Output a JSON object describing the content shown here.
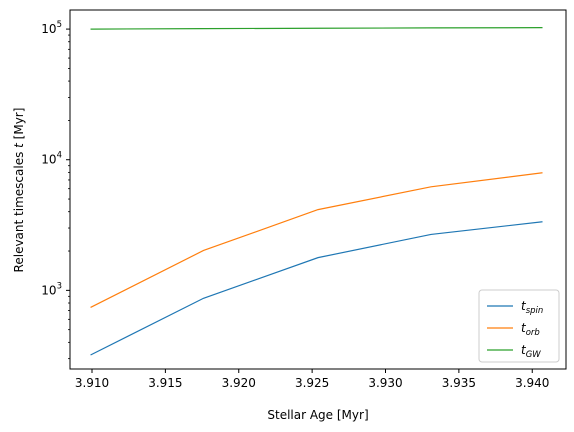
{
  "chart_data": {
    "type": "line",
    "xlabel": "Stellar Age [Myr]",
    "ylabel_prefix": "Relevant timescales ",
    "ylabel_var": "t",
    "ylabel_suffix": " [Myr]",
    "x_scale": "linear",
    "y_scale": "log",
    "xlim": [
      3.9085,
      3.9423
    ],
    "ylim": [
      250,
      140000
    ],
    "x_ticks": [
      3.91,
      3.915,
      3.92,
      3.925,
      3.93,
      3.935,
      3.94
    ],
    "x_tick_labels": [
      "3.910",
      "3.915",
      "3.920",
      "3.925",
      "3.930",
      "3.935",
      "3.940"
    ],
    "y_major_ticks": [
      1000,
      10000,
      100000
    ],
    "y_tick_labels": [
      {
        "base": "10",
        "exp": "3"
      },
      {
        "base": "10",
        "exp": "4"
      },
      {
        "base": "10",
        "exp": "5"
      }
    ],
    "grid": false,
    "legend_position": "lower-right",
    "x": [
      3.9099,
      3.9176,
      3.9254,
      3.9331,
      3.9407
    ],
    "series": [
      {
        "name_main": "t",
        "name_sub": "spin",
        "color": "#1f77b4",
        "values": [
          320,
          870,
          1780,
          2680,
          3350
        ]
      },
      {
        "name_main": "t",
        "name_sub": "orb",
        "color": "#ff7f0e",
        "values": [
          740,
          2020,
          4150,
          6200,
          7950
        ]
      },
      {
        "name_main": "t",
        "name_sub": "GW",
        "color": "#2ca02c",
        "values": [
          100000,
          100800,
          101500,
          102100,
          102600
        ]
      }
    ]
  }
}
